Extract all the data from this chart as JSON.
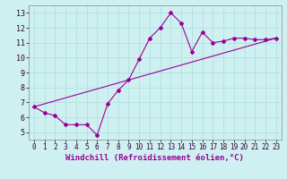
{
  "xlabel": "Windchill (Refroidissement éolien,°C)",
  "background_color": "#cff0f0",
  "line_color": "#990099",
  "xlim": [
    -0.5,
    23.5
  ],
  "ylim": [
    4.5,
    13.5
  ],
  "xticks": [
    0,
    1,
    2,
    3,
    4,
    5,
    6,
    7,
    8,
    9,
    10,
    11,
    12,
    13,
    14,
    15,
    16,
    17,
    18,
    19,
    20,
    21,
    22,
    23
  ],
  "yticks": [
    5,
    6,
    7,
    8,
    9,
    10,
    11,
    12,
    13
  ],
  "grid_color": "#aadddd",
  "curve1_x": [
    0,
    1,
    2,
    3,
    4,
    5,
    6,
    7,
    8,
    9,
    10,
    11,
    12,
    13,
    14,
    15,
    16,
    17,
    18,
    19,
    20,
    21,
    22,
    23
  ],
  "curve1_y": [
    6.7,
    6.3,
    6.1,
    5.5,
    5.5,
    5.5,
    4.8,
    6.9,
    7.8,
    8.5,
    9.9,
    11.3,
    12.0,
    13.0,
    12.3,
    10.4,
    11.7,
    11.0,
    11.1,
    11.3,
    11.3,
    11.2,
    11.2,
    11.3
  ],
  "curve2_x": [
    0,
    23
  ],
  "curve2_y": [
    6.7,
    11.3
  ],
  "marker": "D",
  "markersize": 2.0,
  "linewidth": 0.8,
  "xlabel_fontsize": 6.5,
  "tick_fontsize": 5.5
}
